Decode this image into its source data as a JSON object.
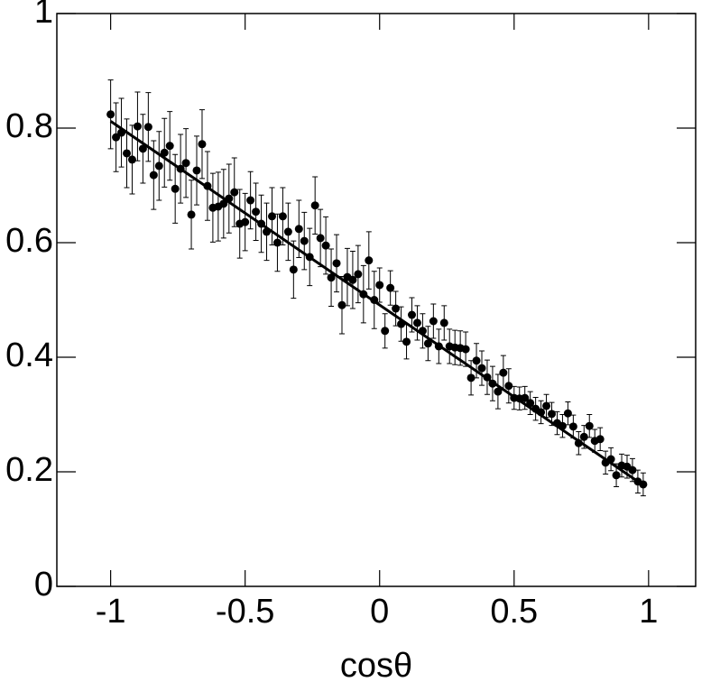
{
  "chart_data": {
    "type": "scatter",
    "x_label": "cosθ",
    "x": [
      -1,
      -0.98,
      -0.96,
      -0.94,
      -0.92,
      -0.9,
      -0.88,
      -0.86,
      -0.84,
      -0.82,
      -0.8,
      -0.78,
      -0.76,
      -0.74,
      -0.72,
      -0.7,
      -0.68,
      -0.66,
      -0.64,
      -0.62,
      -0.6,
      -0.58,
      -0.56,
      -0.54,
      -0.52,
      -0.5,
      -0.48,
      -0.46,
      -0.44,
      -0.42,
      -0.4,
      -0.38,
      -0.36,
      -0.34,
      -0.32,
      -0.3,
      -0.28,
      -0.26,
      -0.24,
      -0.22,
      -0.2,
      -0.18,
      -0.16,
      -0.14,
      -0.12,
      -0.1,
      -0.08,
      -0.06,
      -0.04,
      -0.02,
      0,
      0.02,
      0.04,
      0.06,
      0.08,
      0.1,
      0.12,
      0.14,
      0.16,
      0.18,
      0.2,
      0.22,
      0.24,
      0.26,
      0.28,
      0.3,
      0.32,
      0.34,
      0.36,
      0.38,
      0.4,
      0.42,
      0.44,
      0.46,
      0.48,
      0.5,
      0.52,
      0.54,
      0.56,
      0.58,
      0.6,
      0.62,
      0.64,
      0.66,
      0.68,
      0.7,
      0.72,
      0.74,
      0.76,
      0.78,
      0.8,
      0.82,
      0.84,
      0.86,
      0.88,
      0.9,
      0.92,
      0.94,
      0.96,
      0.98
    ],
    "values": [
      0.824,
      0.784,
      0.792,
      0.756,
      0.745,
      0.803,
      0.764,
      0.802,
      0.718,
      0.734,
      0.757,
      0.769,
      0.694,
      0.729,
      0.739,
      0.649,
      0.726,
      0.772,
      0.699,
      0.661,
      0.663,
      0.668,
      0.677,
      0.688,
      0.633,
      0.636,
      0.674,
      0.654,
      0.633,
      0.619,
      0.646,
      0.6,
      0.646,
      0.619,
      0.553,
      0.624,
      0.603,
      0.575,
      0.665,
      0.608,
      0.595,
      0.539,
      0.564,
      0.491,
      0.54,
      0.535,
      0.545,
      0.51,
      0.569,
      0.5,
      0.526,
      0.446,
      0.521,
      0.485,
      0.458,
      0.427,
      0.474,
      0.46,
      0.446,
      0.424,
      0.463,
      0.419,
      0.46,
      0.419,
      0.417,
      0.416,
      0.414,
      0.364,
      0.394,
      0.381,
      0.365,
      0.354,
      0.34,
      0.373,
      0.35,
      0.329,
      0.328,
      0.329,
      0.32,
      0.31,
      0.304,
      0.315,
      0.301,
      0.285,
      0.28,
      0.302,
      0.279,
      0.25,
      0.261,
      0.28,
      0.254,
      0.257,
      0.216,
      0.222,
      0.194,
      0.211,
      0.209,
      0.203,
      0.183,
      0.178
    ],
    "errors": [
      0.06,
      0.06,
      0.06,
      0.06,
      0.06,
      0.06,
      0.06,
      0.06,
      0.06,
      0.06,
      0.06,
      0.06,
      0.06,
      0.06,
      0.06,
      0.06,
      0.06,
      0.06,
      0.06,
      0.06,
      0.06,
      0.06,
      0.06,
      0.06,
      0.06,
      0.05,
      0.05,
      0.05,
      0.05,
      0.05,
      0.05,
      0.05,
      0.05,
      0.05,
      0.05,
      0.05,
      0.05,
      0.05,
      0.05,
      0.05,
      0.05,
      0.05,
      0.05,
      0.05,
      0.05,
      0.05,
      0.05,
      0.05,
      0.05,
      0.05,
      0.03,
      0.03,
      0.03,
      0.03,
      0.03,
      0.03,
      0.03,
      0.03,
      0.03,
      0.03,
      0.03,
      0.03,
      0.03,
      0.03,
      0.03,
      0.03,
      0.03,
      0.03,
      0.03,
      0.03,
      0.03,
      0.03,
      0.03,
      0.03,
      0.03,
      0.02,
      0.02,
      0.02,
      0.02,
      0.02,
      0.02,
      0.02,
      0.02,
      0.02,
      0.02,
      0.02,
      0.02,
      0.02,
      0.02,
      0.02,
      0.02,
      0.02,
      0.02,
      0.02,
      0.02,
      0.02,
      0.02,
      0.02,
      0.02,
      0.02
    ],
    "fit": {
      "x": [
        -1,
        0.97
      ],
      "y": [
        0.812,
        0.18
      ]
    },
    "color": "#000000",
    "xlim": [
      -1.2,
      1.175
    ],
    "ylim": [
      0,
      1
    ],
    "xticks": [
      -1,
      -0.5,
      0,
      0.5,
      1
    ],
    "yticks": [
      0,
      0.2,
      0.4,
      0.6,
      0.8,
      1
    ]
  }
}
